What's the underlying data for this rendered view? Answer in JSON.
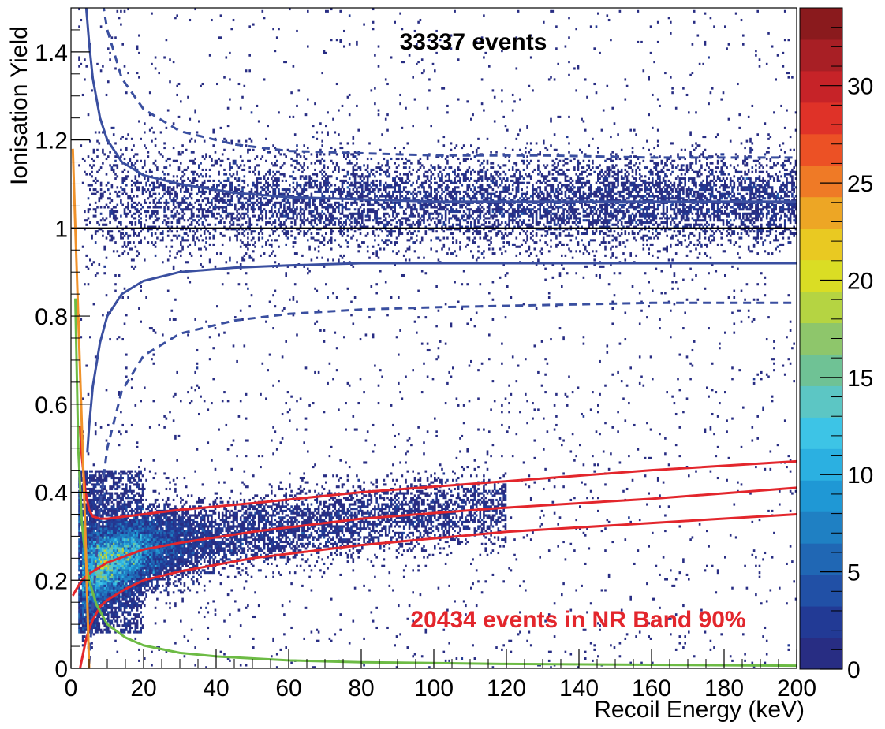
{
  "chart_data": {
    "type": "heatmap",
    "title": "",
    "xlabel": "Recoil Energy (keV)",
    "ylabel": "Ionisation Yield",
    "xlim": [
      0,
      200
    ],
    "ylim": [
      0,
      1.5
    ],
    "x_ticks": [
      "0",
      "20",
      "40",
      "60",
      "80",
      "100",
      "120",
      "140",
      "160",
      "180",
      "200"
    ],
    "y_ticks": [
      "0",
      "0.2",
      "0.4",
      "0.6",
      "0.8",
      "1",
      "1.2",
      "1.4"
    ],
    "colorbar": {
      "min": 0,
      "max": 34,
      "ticks": [
        "0",
        "5",
        "10",
        "15",
        "20",
        "25",
        "30"
      ],
      "palette": [
        "#282d83",
        "#223a95",
        "#2150a6",
        "#2067b4",
        "#1f80c3",
        "#1f98d5",
        "#2bb0e1",
        "#3dc4e6",
        "#5cc6c4",
        "#6fc295",
        "#8ec66b",
        "#b5d442",
        "#dadd24",
        "#e9c922",
        "#eda625",
        "#ef7a26",
        "#ec5125",
        "#df3228",
        "#c62328",
        "#a81f25",
        "#8a1a1d"
      ]
    },
    "annotations": {
      "total": "33337 events",
      "nr_band": "20434 events in NR Band 90%"
    },
    "reference_lines": [
      {
        "name": "Q = 1",
        "y": 1.0,
        "color": "#000000"
      }
    ],
    "curves": {
      "er_band_center_upper": {
        "color": "#3a4fa0",
        "style": "solid",
        "x": [
          3.5,
          4,
          5,
          6,
          8,
          10,
          14,
          20,
          30,
          45,
          60,
          80,
          100,
          130,
          160,
          200
        ],
        "y": [
          1.6,
          1.52,
          1.42,
          1.34,
          1.25,
          1.2,
          1.15,
          1.12,
          1.1,
          1.08,
          1.07,
          1.065,
          1.06,
          1.06,
          1.06,
          1.06
        ]
      },
      "er_band_outer_upper": {
        "color": "#3a4fa0",
        "style": "dashed",
        "x": [
          7,
          8,
          10,
          14,
          20,
          30,
          45,
          60,
          80,
          100,
          130,
          160,
          200
        ],
        "y": [
          1.6,
          1.55,
          1.45,
          1.34,
          1.27,
          1.22,
          1.19,
          1.175,
          1.17,
          1.165,
          1.165,
          1.16,
          1.16
        ]
      },
      "er_band_inner_lower": {
        "color": "#3a4fa0",
        "style": "solid",
        "x": [
          4.5,
          5,
          6,
          8,
          10,
          14,
          20,
          30,
          45,
          60,
          80,
          100,
          130,
          160,
          200
        ],
        "y": [
          0.49,
          0.55,
          0.64,
          0.74,
          0.8,
          0.85,
          0.88,
          0.9,
          0.91,
          0.915,
          0.92,
          0.92,
          0.92,
          0.92,
          0.92
        ]
      },
      "er_band_outer_lower": {
        "color": "#3a4fa0",
        "style": "dashed",
        "x": [
          5,
          6,
          8,
          10,
          14,
          20,
          30,
          45,
          60,
          80,
          100,
          130,
          160,
          200
        ],
        "y": [
          0.01,
          0.14,
          0.37,
          0.5,
          0.63,
          0.71,
          0.76,
          0.79,
          0.805,
          0.815,
          0.82,
          0.825,
          0.83,
          0.83
        ]
      },
      "nr_band_upper": {
        "color": "#e3262c",
        "style": "solid",
        "x": [
          2.5,
          3,
          4,
          5,
          6,
          8,
          10,
          15,
          20,
          30,
          50,
          80,
          120,
          160,
          200
        ],
        "y": [
          0.55,
          0.48,
          0.4,
          0.36,
          0.345,
          0.34,
          0.34,
          0.345,
          0.35,
          0.36,
          0.375,
          0.4,
          0.425,
          0.45,
          0.47
        ]
      },
      "nr_band_center": {
        "color": "#e3262c",
        "style": "solid",
        "x": [
          0.5,
          1.5,
          3,
          5,
          8,
          10,
          15,
          20,
          30,
          50,
          80,
          120,
          160,
          200
        ],
        "y": [
          0.165,
          0.18,
          0.2,
          0.215,
          0.23,
          0.24,
          0.255,
          0.27,
          0.285,
          0.31,
          0.34,
          0.365,
          0.385,
          0.41
        ]
      },
      "nr_band_lower": {
        "color": "#e3262c",
        "style": "solid",
        "x": [
          2.5,
          4,
          5,
          6,
          8,
          10,
          15,
          20,
          30,
          50,
          80,
          120,
          160,
          200
        ],
        "y": [
          0,
          0.06,
          0.09,
          0.11,
          0.14,
          0.155,
          0.18,
          0.2,
          0.22,
          0.25,
          0.28,
          0.31,
          0.33,
          0.35
        ]
      },
      "ionisation_threshold": {
        "color": "#6dbb45",
        "style": "solid",
        "x": [
          1.2,
          2,
          3,
          4,
          5,
          7,
          10,
          15,
          20,
          30,
          40,
          60,
          80,
          120,
          160,
          200
        ],
        "y": [
          0.84,
          0.5,
          0.33,
          0.25,
          0.2,
          0.145,
          0.1,
          0.07,
          0.052,
          0.035,
          0.027,
          0.018,
          0.014,
          0.01,
          0.008,
          0.006
        ]
      },
      "heat_threshold": {
        "color": "#f0922a",
        "style": "solid",
        "x": [
          0.5,
          1,
          2,
          3,
          4,
          5
        ],
        "y": [
          1.18,
          1.05,
          0.8,
          0.55,
          0.3,
          0.0
        ]
      }
    },
    "populations": [
      {
        "name": "electron recoil band",
        "x_range": [
          3,
          200
        ],
        "y_center": 1.06,
        "y_sigma": 0.05,
        "counts": 8000,
        "sigma_scales_at_low_energy": true
      },
      {
        "name": "nuclear recoil band",
        "x_range": [
          3,
          120
        ],
        "y_center_from": "nr_band_center",
        "y_sigma": 0.04,
        "counts": 15000,
        "peak_near_x": 8
      },
      {
        "name": "low-yield tail",
        "x_range": [
          2,
          20
        ],
        "y_range": [
          0.08,
          0.45
        ],
        "counts": 2500
      },
      {
        "name": "scattered events",
        "x_range": [
          2,
          200
        ],
        "y_range": [
          0.0,
          1.5
        ],
        "counts": 2200
      }
    ]
  }
}
